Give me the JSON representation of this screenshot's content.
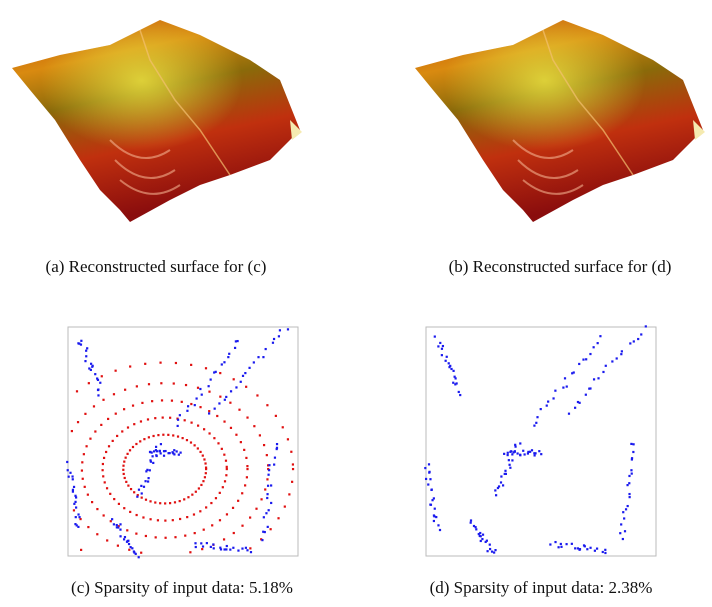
{
  "figures": [
    {
      "caption": "(a) Reconstructed surface for (c)"
    },
    {
      "caption": "(b) Reconstructed surface for (d)"
    },
    {
      "caption": "(c) Sparsity of input data: 5.18%"
    },
    {
      "caption": "(d) Sparsity of input data: 2.38%"
    }
  ]
}
